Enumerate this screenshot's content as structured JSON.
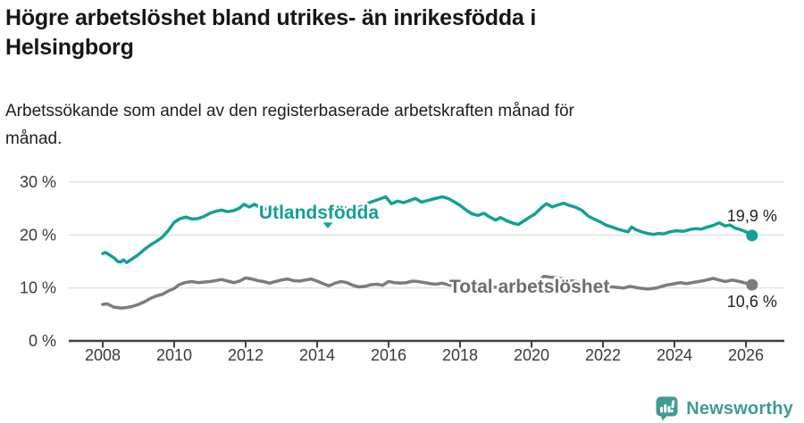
{
  "header": {
    "title_lines": [
      "Högre arbetslöshet bland utrikes- än inrikesfödda i",
      "Helsingborg"
    ],
    "subtitle_lines": [
      "Arbetssökande som andel av den registerbaserade arbetskraften månad för",
      "månad."
    ]
  },
  "branding": {
    "name": "Newsworthy",
    "icon": "bar-chart-speech-bubble-icon"
  },
  "colors": {
    "accent_teal": "#12a096",
    "line_gray": "#7c7c80",
    "label_gray": "#6d6d71",
    "grid": "#d9d9d9",
    "axis": "#3f3f3f",
    "tick_label": "#3a3a3a",
    "annotation_text": "#222222",
    "logo_teal": "#3f9b94",
    "halo": "#ffffff"
  },
  "chart_data": {
    "type": "line",
    "title": "Högre arbetslöshet bland utrikes- än inrikesfödda i Helsingborg",
    "subtitle": "Arbetssökande som andel av den registerbaserade arbetskraften månad för månad.",
    "unit": "%",
    "grid": "horizontal",
    "legend": "inline-labels",
    "x_axis": {
      "ticks": [
        2008,
        2010,
        2012,
        2014,
        2016,
        2018,
        2020,
        2022,
        2024,
        2026
      ],
      "range": [
        2007.05,
        2027.1
      ]
    },
    "y_axis": {
      "ticks": [
        0,
        10,
        20,
        30
      ],
      "tick_labels": [
        "0 %",
        "10 %",
        "20 %",
        "30 %"
      ],
      "range": [
        0,
        31.6
      ]
    },
    "annotations": [
      {
        "type": "caret-down",
        "x": 2014.3,
        "y": 22.35
      }
    ],
    "series": [
      {
        "id": "utlandsfodda",
        "name": "Utlandsfödda",
        "color": "#12a096",
        "label": {
          "x": 2014.05,
          "y": 23.1,
          "anchor": "middle"
        },
        "end_label": "19,9 %",
        "end_value": 19.9,
        "end_label_dx": -28,
        "end_label_dy": -16,
        "points": [
          [
            2008.0,
            16.5
          ],
          [
            2008.08,
            16.7
          ],
          [
            2008.2,
            16.2
          ],
          [
            2008.33,
            15.6
          ],
          [
            2008.42,
            15.0
          ],
          [
            2008.5,
            14.9
          ],
          [
            2008.58,
            15.3
          ],
          [
            2008.67,
            14.8
          ],
          [
            2008.83,
            15.5
          ],
          [
            2009.0,
            16.3
          ],
          [
            2009.17,
            17.3
          ],
          [
            2009.33,
            18.1
          ],
          [
            2009.5,
            18.8
          ],
          [
            2009.67,
            19.6
          ],
          [
            2009.83,
            20.8
          ],
          [
            2010.0,
            22.4
          ],
          [
            2010.17,
            23.1
          ],
          [
            2010.33,
            23.4
          ],
          [
            2010.5,
            23.0
          ],
          [
            2010.67,
            23.1
          ],
          [
            2010.83,
            23.5
          ],
          [
            2011.0,
            24.1
          ],
          [
            2011.17,
            24.5
          ],
          [
            2011.33,
            24.7
          ],
          [
            2011.5,
            24.4
          ],
          [
            2011.67,
            24.6
          ],
          [
            2011.83,
            25.1
          ],
          [
            2011.95,
            25.8
          ],
          [
            2012.1,
            25.3
          ],
          [
            2012.25,
            25.8
          ],
          [
            2012.42,
            25.1
          ],
          [
            2012.58,
            24.9
          ],
          [
            2012.75,
            24.6
          ],
          [
            2013.0,
            24.9
          ],
          [
            2013.25,
            24.6
          ],
          [
            2013.5,
            24.8
          ],
          [
            2013.75,
            24.5
          ],
          [
            2014.0,
            24.7
          ],
          [
            2014.25,
            24.9
          ],
          [
            2014.5,
            25.0
          ],
          [
            2014.75,
            25.1
          ],
          [
            2015.0,
            25.0
          ],
          [
            2015.25,
            25.4
          ],
          [
            2015.5,
            26.2
          ],
          [
            2015.75,
            26.8
          ],
          [
            2015.92,
            27.2
          ],
          [
            2016.08,
            25.9
          ],
          [
            2016.25,
            26.4
          ],
          [
            2016.42,
            26.1
          ],
          [
            2016.58,
            26.5
          ],
          [
            2016.75,
            26.9
          ],
          [
            2016.92,
            26.2
          ],
          [
            2017.08,
            26.5
          ],
          [
            2017.25,
            26.8
          ],
          [
            2017.5,
            27.2
          ],
          [
            2017.67,
            26.9
          ],
          [
            2017.83,
            26.3
          ],
          [
            2018.0,
            25.6
          ],
          [
            2018.17,
            24.7
          ],
          [
            2018.33,
            24.0
          ],
          [
            2018.5,
            23.7
          ],
          [
            2018.67,
            24.1
          ],
          [
            2018.83,
            23.4
          ],
          [
            2019.0,
            22.8
          ],
          [
            2019.13,
            23.3
          ],
          [
            2019.3,
            22.7
          ],
          [
            2019.5,
            22.2
          ],
          [
            2019.63,
            22.0
          ],
          [
            2019.8,
            22.7
          ],
          [
            2019.95,
            23.4
          ],
          [
            2020.1,
            24.0
          ],
          [
            2020.3,
            25.3
          ],
          [
            2020.42,
            25.9
          ],
          [
            2020.58,
            25.3
          ],
          [
            2020.75,
            25.7
          ],
          [
            2020.9,
            26.0
          ],
          [
            2021.05,
            25.6
          ],
          [
            2021.25,
            25.2
          ],
          [
            2021.42,
            24.6
          ],
          [
            2021.58,
            23.6
          ],
          [
            2021.75,
            23.0
          ],
          [
            2021.92,
            22.5
          ],
          [
            2022.08,
            21.9
          ],
          [
            2022.25,
            21.5
          ],
          [
            2022.42,
            21.1
          ],
          [
            2022.58,
            20.8
          ],
          [
            2022.7,
            20.6
          ],
          [
            2022.8,
            21.5
          ],
          [
            2022.92,
            21.0
          ],
          [
            2023.08,
            20.6
          ],
          [
            2023.25,
            20.3
          ],
          [
            2023.42,
            20.1
          ],
          [
            2023.55,
            20.3
          ],
          [
            2023.7,
            20.2
          ],
          [
            2023.87,
            20.6
          ],
          [
            2024.05,
            20.8
          ],
          [
            2024.25,
            20.7
          ],
          [
            2024.42,
            21.0
          ],
          [
            2024.58,
            21.2
          ],
          [
            2024.75,
            21.1
          ],
          [
            2024.92,
            21.5
          ],
          [
            2025.08,
            21.8
          ],
          [
            2025.25,
            22.3
          ],
          [
            2025.42,
            21.7
          ],
          [
            2025.55,
            21.9
          ],
          [
            2025.7,
            21.3
          ],
          [
            2025.85,
            21.0
          ],
          [
            2026.0,
            20.6
          ],
          [
            2026.17,
            19.9
          ]
        ]
      },
      {
        "id": "total",
        "name": "Total arbetslöshet",
        "color": "#7c7c80",
        "label_color": "#6d6d71",
        "label": {
          "x": 2017.7,
          "y": 9.1,
          "anchor": "start"
        },
        "end_label": "10,6 %",
        "end_value": 10.6,
        "end_label_dx": -28,
        "end_label_dy": 25,
        "points": [
          [
            2008.0,
            6.9
          ],
          [
            2008.13,
            7.0
          ],
          [
            2008.3,
            6.4
          ],
          [
            2008.5,
            6.2
          ],
          [
            2008.67,
            6.3
          ],
          [
            2008.83,
            6.5
          ],
          [
            2009.0,
            6.9
          ],
          [
            2009.17,
            7.4
          ],
          [
            2009.33,
            8.0
          ],
          [
            2009.5,
            8.5
          ],
          [
            2009.67,
            8.8
          ],
          [
            2009.83,
            9.4
          ],
          [
            2010.0,
            9.9
          ],
          [
            2010.13,
            10.6
          ],
          [
            2010.3,
            11.0
          ],
          [
            2010.5,
            11.2
          ],
          [
            2010.67,
            11.0
          ],
          [
            2010.83,
            11.1
          ],
          [
            2011.0,
            11.2
          ],
          [
            2011.17,
            11.4
          ],
          [
            2011.33,
            11.6
          ],
          [
            2011.5,
            11.3
          ],
          [
            2011.67,
            11.0
          ],
          [
            2011.83,
            11.3
          ],
          [
            2012.0,
            11.9
          ],
          [
            2012.17,
            11.7
          ],
          [
            2012.33,
            11.4
          ],
          [
            2012.5,
            11.2
          ],
          [
            2012.67,
            10.9
          ],
          [
            2012.83,
            11.2
          ],
          [
            2013.0,
            11.5
          ],
          [
            2013.17,
            11.7
          ],
          [
            2013.33,
            11.4
          ],
          [
            2013.5,
            11.3
          ],
          [
            2013.67,
            11.5
          ],
          [
            2013.83,
            11.7
          ],
          [
            2014.0,
            11.3
          ],
          [
            2014.17,
            10.8
          ],
          [
            2014.33,
            10.4
          ],
          [
            2014.5,
            10.9
          ],
          [
            2014.67,
            11.2
          ],
          [
            2014.83,
            11.0
          ],
          [
            2015.0,
            10.5
          ],
          [
            2015.17,
            10.2
          ],
          [
            2015.33,
            10.3
          ],
          [
            2015.5,
            10.6
          ],
          [
            2015.67,
            10.7
          ],
          [
            2015.83,
            10.5
          ],
          [
            2016.0,
            11.2
          ],
          [
            2016.17,
            11.0
          ],
          [
            2016.33,
            10.9
          ],
          [
            2016.5,
            11.0
          ],
          [
            2016.67,
            11.3
          ],
          [
            2016.83,
            11.2
          ],
          [
            2017.0,
            11.0
          ],
          [
            2017.17,
            10.8
          ],
          [
            2017.33,
            10.7
          ],
          [
            2017.5,
            10.9
          ],
          [
            2017.67,
            10.6
          ],
          [
            2017.83,
            10.4
          ],
          [
            2018.08,
            10.5
          ],
          [
            2018.42,
            10.3
          ],
          [
            2018.75,
            10.2
          ],
          [
            2019.08,
            10.1
          ],
          [
            2019.42,
            10.2
          ],
          [
            2019.75,
            10.2
          ],
          [
            2020.0,
            10.5
          ],
          [
            2020.17,
            11.2
          ],
          [
            2020.35,
            12.2
          ],
          [
            2020.58,
            12.0
          ],
          [
            2020.83,
            11.8
          ],
          [
            2021.08,
            11.4
          ],
          [
            2021.42,
            11.0
          ],
          [
            2021.75,
            10.6
          ],
          [
            2022.08,
            10.3
          ],
          [
            2022.42,
            10.1
          ],
          [
            2022.58,
            10.0
          ],
          [
            2022.75,
            10.3
          ],
          [
            2023.0,
            10.0
          ],
          [
            2023.25,
            9.8
          ],
          [
            2023.5,
            10.0
          ],
          [
            2023.75,
            10.5
          ],
          [
            2024.0,
            10.8
          ],
          [
            2024.17,
            11.0
          ],
          [
            2024.33,
            10.8
          ],
          [
            2024.58,
            11.1
          ],
          [
            2024.83,
            11.4
          ],
          [
            2025.08,
            11.8
          ],
          [
            2025.25,
            11.5
          ],
          [
            2025.42,
            11.2
          ],
          [
            2025.62,
            11.5
          ],
          [
            2025.83,
            11.2
          ],
          [
            2026.0,
            10.9
          ],
          [
            2026.17,
            10.6
          ]
        ]
      }
    ]
  }
}
